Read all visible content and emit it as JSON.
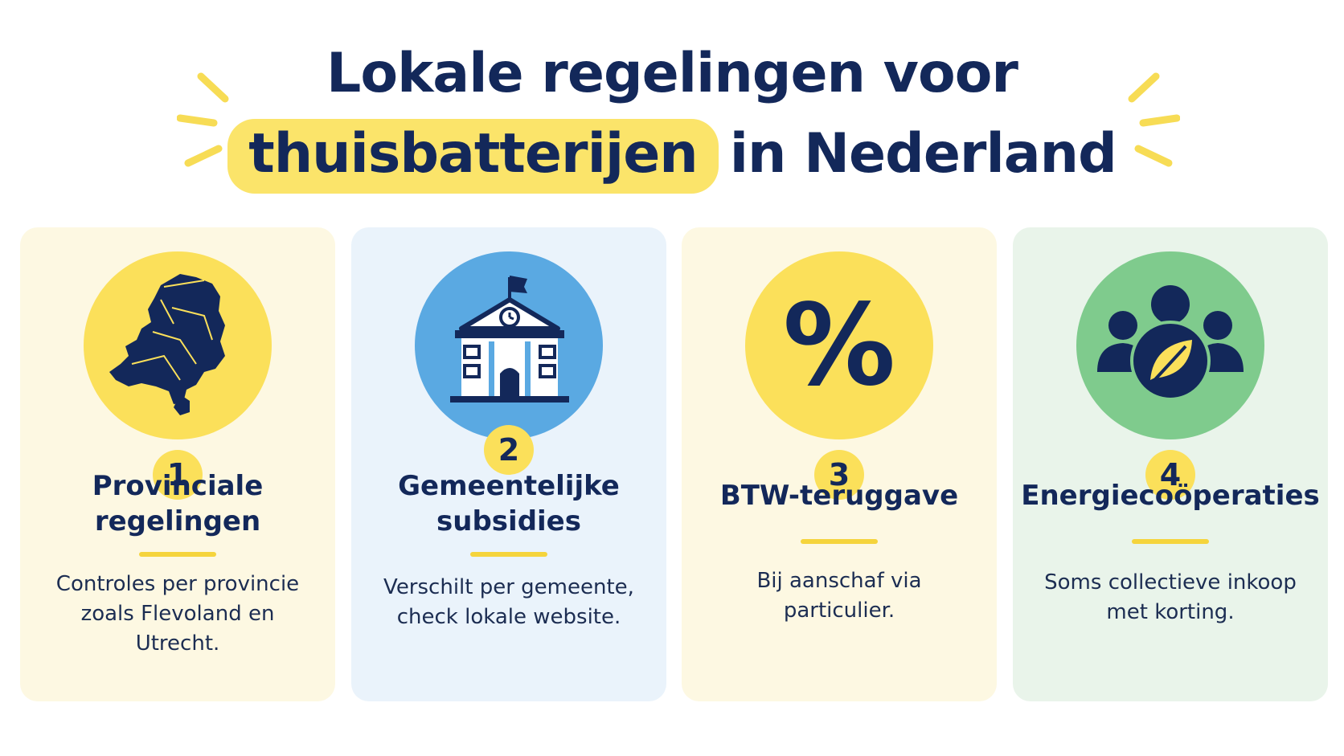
{
  "title": {
    "line1": "Lokale regelingen voor",
    "highlight": "thuisbatterijen",
    "line2_rest": "in Nederland"
  },
  "colors": {
    "navy": "#13285a",
    "accent_yellow": "#fbe05a",
    "blue": "#5aa9e2",
    "green": "#7fcb8d",
    "card_cream": "#fdf8e2",
    "card_blue": "#eaf3fb",
    "card_green": "#e9f4ea"
  },
  "cards": [
    {
      "number": "1",
      "icon": "netherlands-map-icon",
      "heading_lines": [
        "Provinciale",
        "regelingen"
      ],
      "description_lines": [
        "Controles per provincie",
        "zoals Flevoland en Utrecht."
      ]
    },
    {
      "number": "2",
      "icon": "town-hall-icon",
      "heading_lines": [
        "Gemeentelijke",
        "subsidies"
      ],
      "description_lines": [
        "Verschilt per gemeente,",
        "check lokale website."
      ]
    },
    {
      "number": "3",
      "icon": "percent-icon",
      "icon_text": "%",
      "heading_lines": [
        "BTW-teruggave"
      ],
      "description_lines": [
        "Bij aanschaf via",
        "particulier."
      ]
    },
    {
      "number": "4",
      "icon": "community-leaf-icon",
      "heading_lines": [
        "Energiecoöperaties"
      ],
      "description_lines": [
        "Soms collectieve inkoop",
        "met korting."
      ]
    }
  ]
}
